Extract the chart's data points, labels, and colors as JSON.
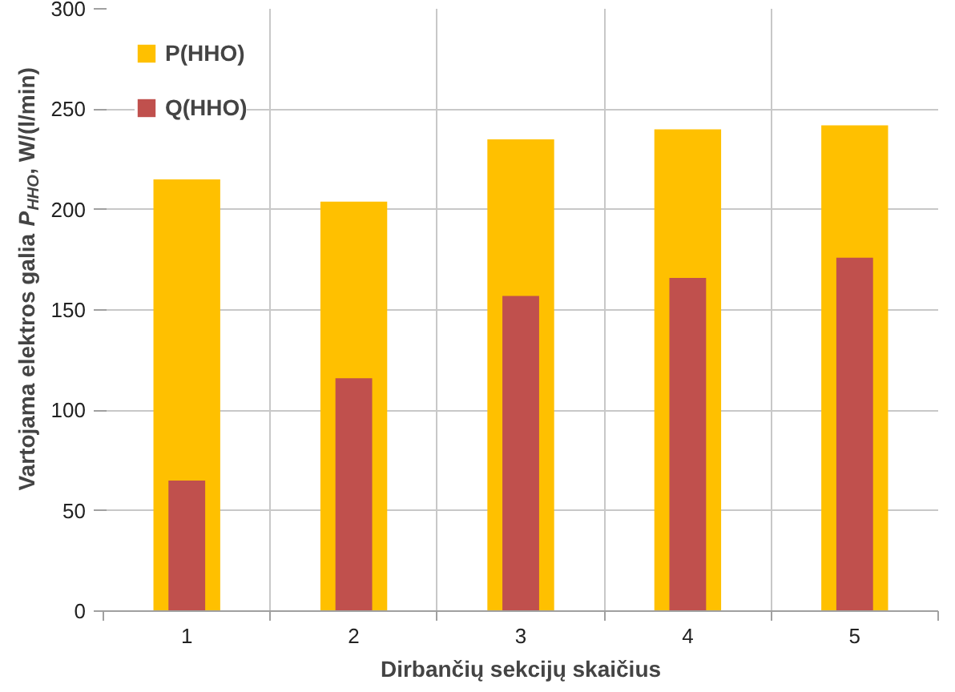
{
  "chart_data": {
    "type": "bar",
    "xlabel": "Dirbančių sekcijų skaičius",
    "ylabel": "Vartojama elektros galia P$_{HHO}$, W/(l/min)",
    "categories": [
      "1",
      "2",
      "3",
      "4",
      "5"
    ],
    "series": [
      {
        "name": "P(HHO)",
        "color": "#ffc000",
        "values": [
          215,
          204,
          235,
          240,
          242
        ]
      },
      {
        "name": "Q(HHO)",
        "color": "#c0504d",
        "values": [
          65,
          116,
          157,
          166,
          176
        ]
      }
    ],
    "ylim": [
      0,
      300
    ],
    "yticks": [
      0,
      50,
      100,
      150,
      200,
      250,
      300
    ],
    "grid": true,
    "legend": "top left"
  }
}
